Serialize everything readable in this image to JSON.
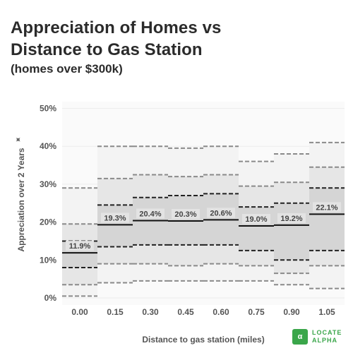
{
  "title_line1": "Appreciation of Homes vs",
  "title_line2": "Distance to Gas Station",
  "subtitle": "(homes over $300k)",
  "logo": {
    "mark": "α",
    "line1": "LOCATE",
    "line2": "ALPHA"
  },
  "pin_icon": "pushpin-icon",
  "chart_data": {
    "type": "box",
    "title": "Appreciation of Homes vs Distance to Gas Station",
    "subtitle": "(homes over $300k)",
    "xlabel": "Distance to gas station (miles)",
    "ylabel": "Appreciation over 2 Years",
    "categories": [
      "0.00",
      "0.15",
      "0.30",
      "0.45",
      "0.60",
      "0.75",
      "0.90",
      "1.05"
    ],
    "ylim": [
      0,
      50
    ],
    "yticks": [
      0,
      10,
      20,
      30,
      40,
      50
    ],
    "ytick_labels": [
      "0%",
      "10%",
      "20%",
      "30%",
      "40%",
      "50%"
    ],
    "grid": true,
    "median_labels": [
      "11.9%",
      "19.3%",
      "20.4%",
      "20.3%",
      "20.6%",
      "19.0%",
      "19.2%",
      "22.1%"
    ],
    "series": [
      {
        "distance": "0.00",
        "outer": [
          0.5,
          29
        ],
        "mid": [
          3.5,
          19.5
        ],
        "inner": [
          8,
          15
        ],
        "median": 11.9
      },
      {
        "distance": "0.15",
        "outer": [
          4,
          40
        ],
        "mid": [
          9,
          31.5
        ],
        "inner": [
          13.5,
          24.5
        ],
        "median": 19.3
      },
      {
        "distance": "0.30",
        "outer": [
          4.5,
          40
        ],
        "mid": [
          9,
          32.5
        ],
        "inner": [
          14,
          26.5
        ],
        "median": 20.4
      },
      {
        "distance": "0.45",
        "outer": [
          4.5,
          39.5
        ],
        "mid": [
          8.5,
          32
        ],
        "inner": [
          14,
          27
        ],
        "median": 20.3
      },
      {
        "distance": "0.60",
        "outer": [
          4.5,
          40
        ],
        "mid": [
          9,
          32.5
        ],
        "inner": [
          14,
          27.5
        ],
        "median": 20.6
      },
      {
        "distance": "0.75",
        "outer": [
          4.5,
          36
        ],
        "mid": [
          8.5,
          29.5
        ],
        "inner": [
          12.5,
          24
        ],
        "median": 19.0
      },
      {
        "distance": "0.90",
        "outer": [
          3.5,
          38
        ],
        "mid": [
          6.5,
          30.5
        ],
        "inner": [
          10,
          25
        ],
        "median": 19.2
      },
      {
        "distance": "1.05",
        "outer": [
          2.5,
          41
        ],
        "mid": [
          8.5,
          34.5
        ],
        "inner": [
          12.5,
          29
        ],
        "median": 22.1
      }
    ],
    "colors": {
      "outer": "#f3f3f3",
      "mid": "#e6e6e6",
      "inner": "#d5d5d5",
      "median": "#111111",
      "dash_light": "#8a8a8a",
      "dash_dark": "#222222"
    }
  }
}
